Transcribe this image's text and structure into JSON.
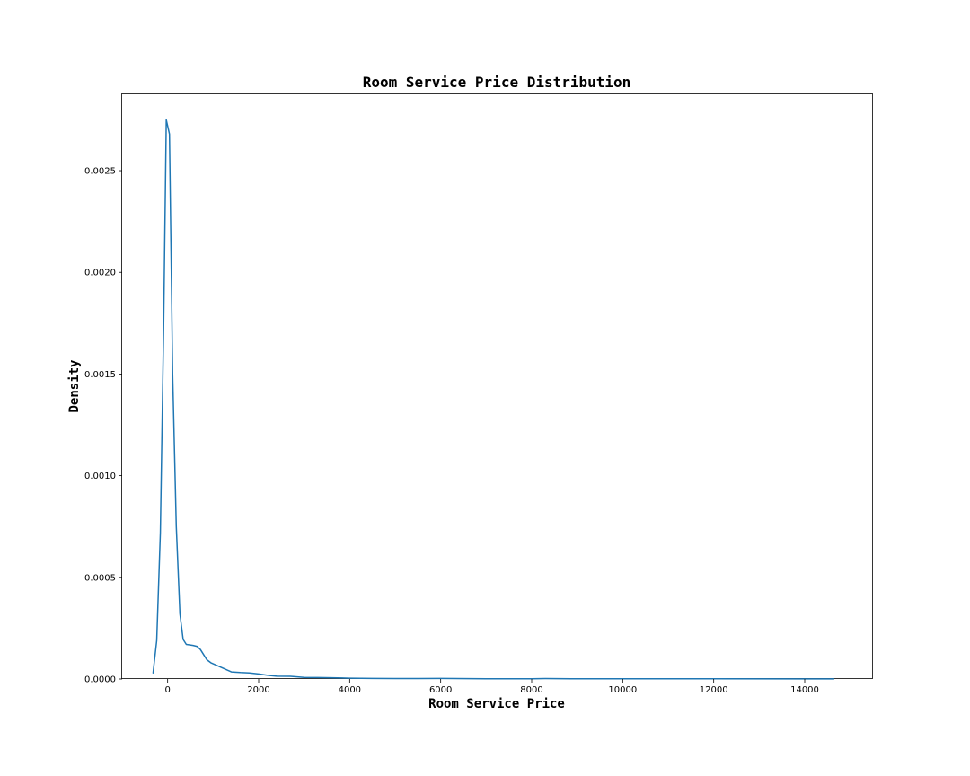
{
  "chart_data": {
    "type": "line",
    "title": "Room Service Price Distribution",
    "xlabel": "Room Service Price",
    "ylabel": "Density",
    "xlim": [
      -1000,
      15500
    ],
    "ylim": [
      0,
      0.00288
    ],
    "grid": false,
    "xticks": [
      0,
      2000,
      4000,
      6000,
      8000,
      10000,
      12000,
      14000
    ],
    "xtick_labels": [
      "0",
      "2000",
      "4000",
      "6000",
      "8000",
      "10000",
      "12000",
      "14000"
    ],
    "yticks": [
      0,
      0.0005,
      0.001,
      0.0015,
      0.002,
      0.0025
    ],
    "ytick_labels": [
      "0.0000",
      "0.0005",
      "0.0010",
      "0.0015",
      "0.0020",
      "0.0025"
    ],
    "line_color": "#1f77b4",
    "series": [
      {
        "x": [
          -320,
          -240,
          -160,
          -90,
          -30,
          40,
          110,
          190,
          270,
          340,
          410,
          480,
          560,
          650,
          720,
          790,
          860,
          950,
          1050,
          1150,
          1250,
          1400,
          1600,
          1800,
          2000,
          2200,
          2400,
          2700,
          3000,
          3300,
          3600,
          4000,
          4500,
          5000,
          5500,
          6000,
          7000,
          8000,
          8300,
          9000,
          10000,
          12000,
          14640
        ],
        "y": [
          3e-05,
          0.00019,
          0.00072,
          0.0017,
          0.00275,
          0.00268,
          0.0015,
          0.00075,
          0.00032,
          0.000195,
          0.00017,
          0.000168,
          0.000165,
          0.00016,
          0.000145,
          0.00012,
          9.5e-05,
          8e-05,
          7e-05,
          6e-05,
          5e-05,
          3.5e-05,
          3.2e-05,
          3e-05,
          2.5e-05,
          1.8e-05,
          1.4e-05,
          1.3e-05,
          8e-06,
          7e-06,
          6e-06,
          4e-06,
          3e-06,
          2e-06,
          2e-06,
          3e-06,
          1e-06,
          1e-06,
          2e-06,
          1e-06,
          1e-06,
          1e-06,
          5e-07
        ]
      }
    ]
  }
}
